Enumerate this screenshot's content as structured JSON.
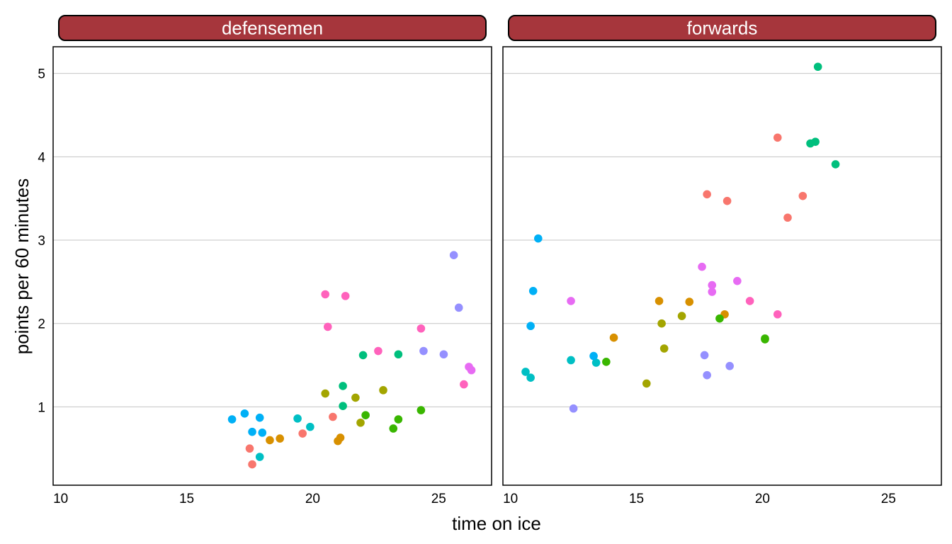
{
  "chart_data": {
    "type": "scatter",
    "xlabel": "time on ice",
    "ylabel": "points per 60 minutes",
    "xlim": [
      9.7,
      27.1
    ],
    "ylim": [
      0.06,
      5.32
    ],
    "xticks": [
      10,
      15,
      20,
      25
    ],
    "yticks": [
      1,
      2,
      3,
      4,
      5
    ],
    "grid": "horizontal major",
    "strip_color": "#a6363c",
    "series_colors": [
      "#f8766d",
      "#d89000",
      "#a3a500",
      "#39b600",
      "#00bf7d",
      "#00bfc4",
      "#00b0f6",
      "#9590ff",
      "#e76bf3",
      "#ff62bc"
    ],
    "panels": [
      {
        "title": "defensemen",
        "points": [
          {
            "x": 17.5,
            "y": 0.5,
            "c": 0
          },
          {
            "x": 17.6,
            "y": 0.31,
            "c": 0
          },
          {
            "x": 19.6,
            "y": 0.68,
            "c": 0
          },
          {
            "x": 20.8,
            "y": 0.88,
            "c": 0
          },
          {
            "x": 18.3,
            "y": 0.6,
            "c": 1
          },
          {
            "x": 18.7,
            "y": 0.62,
            "c": 1
          },
          {
            "x": 21.0,
            "y": 0.59,
            "c": 1
          },
          {
            "x": 21.1,
            "y": 0.63,
            "c": 1
          },
          {
            "x": 20.5,
            "y": 1.16,
            "c": 2
          },
          {
            "x": 21.7,
            "y": 1.11,
            "c": 2
          },
          {
            "x": 21.9,
            "y": 0.81,
            "c": 2
          },
          {
            "x": 22.8,
            "y": 1.2,
            "c": 2
          },
          {
            "x": 22.1,
            "y": 0.9,
            "c": 3
          },
          {
            "x": 23.2,
            "y": 0.74,
            "c": 3
          },
          {
            "x": 23.4,
            "y": 0.85,
            "c": 3
          },
          {
            "x": 24.3,
            "y": 0.96,
            "c": 3
          },
          {
            "x": 21.2,
            "y": 1.25,
            "c": 4
          },
          {
            "x": 21.2,
            "y": 1.01,
            "c": 4
          },
          {
            "x": 22.0,
            "y": 1.62,
            "c": 4
          },
          {
            "x": 23.4,
            "y": 1.63,
            "c": 4
          },
          {
            "x": 17.9,
            "y": 0.4,
            "c": 5
          },
          {
            "x": 19.4,
            "y": 0.86,
            "c": 5
          },
          {
            "x": 19.9,
            "y": 0.76,
            "c": 5
          },
          {
            "x": 16.8,
            "y": 0.85,
            "c": 6
          },
          {
            "x": 17.3,
            "y": 0.92,
            "c": 6
          },
          {
            "x": 17.6,
            "y": 0.7,
            "c": 6
          },
          {
            "x": 17.9,
            "y": 0.87,
            "c": 6
          },
          {
            "x": 18.0,
            "y": 0.69,
            "c": 6
          },
          {
            "x": 24.4,
            "y": 1.67,
            "c": 7
          },
          {
            "x": 25.2,
            "y": 1.63,
            "c": 7
          },
          {
            "x": 25.6,
            "y": 2.82,
            "c": 7
          },
          {
            "x": 25.8,
            "y": 2.19,
            "c": 7
          },
          {
            "x": 26.2,
            "y": 1.48,
            "c": 8
          },
          {
            "x": 26.3,
            "y": 1.44,
            "c": 8
          },
          {
            "x": 20.5,
            "y": 2.35,
            "c": 9
          },
          {
            "x": 20.6,
            "y": 1.96,
            "c": 9
          },
          {
            "x": 21.3,
            "y": 2.33,
            "c": 9
          },
          {
            "x": 22.6,
            "y": 1.67,
            "c": 9
          },
          {
            "x": 24.3,
            "y": 1.94,
            "c": 9
          },
          {
            "x": 26.0,
            "y": 1.27,
            "c": 9
          }
        ]
      },
      {
        "title": "forwards",
        "points": [
          {
            "x": 17.8,
            "y": 3.55,
            "c": 0
          },
          {
            "x": 18.6,
            "y": 3.47,
            "c": 0
          },
          {
            "x": 20.6,
            "y": 4.23,
            "c": 0
          },
          {
            "x": 21.0,
            "y": 3.27,
            "c": 0
          },
          {
            "x": 21.6,
            "y": 3.53,
            "c": 0
          },
          {
            "x": 14.1,
            "y": 1.83,
            "c": 1
          },
          {
            "x": 15.9,
            "y": 2.27,
            "c": 1
          },
          {
            "x": 17.1,
            "y": 2.26,
            "c": 1
          },
          {
            "x": 18.5,
            "y": 2.11,
            "c": 1
          },
          {
            "x": 15.4,
            "y": 1.28,
            "c": 2
          },
          {
            "x": 16.0,
            "y": 2.0,
            "c": 2
          },
          {
            "x": 16.1,
            "y": 1.7,
            "c": 2
          },
          {
            "x": 16.8,
            "y": 2.09,
            "c": 2
          },
          {
            "x": 13.8,
            "y": 1.54,
            "c": 3
          },
          {
            "x": 18.3,
            "y": 2.06,
            "c": 3
          },
          {
            "x": 20.1,
            "y": 1.82,
            "c": 3
          },
          {
            "x": 20.1,
            "y": 1.81,
            "c": 3
          },
          {
            "x": 21.9,
            "y": 4.16,
            "c": 4
          },
          {
            "x": 22.1,
            "y": 4.18,
            "c": 4
          },
          {
            "x": 22.2,
            "y": 5.08,
            "c": 4
          },
          {
            "x": 22.9,
            "y": 3.91,
            "c": 4
          },
          {
            "x": 10.6,
            "y": 1.42,
            "c": 5
          },
          {
            "x": 10.8,
            "y": 1.35,
            "c": 5
          },
          {
            "x": 12.4,
            "y": 1.56,
            "c": 5
          },
          {
            "x": 13.4,
            "y": 1.53,
            "c": 5
          },
          {
            "x": 10.8,
            "y": 1.97,
            "c": 6
          },
          {
            "x": 10.9,
            "y": 2.39,
            "c": 6
          },
          {
            "x": 11.1,
            "y": 3.02,
            "c": 6
          },
          {
            "x": 13.3,
            "y": 1.61,
            "c": 6
          },
          {
            "x": 12.5,
            "y": 0.98,
            "c": 7
          },
          {
            "x": 17.7,
            "y": 1.62,
            "c": 7
          },
          {
            "x": 17.8,
            "y": 1.38,
            "c": 7
          },
          {
            "x": 18.7,
            "y": 1.49,
            "c": 7
          },
          {
            "x": 12.4,
            "y": 2.27,
            "c": 8
          },
          {
            "x": 17.6,
            "y": 2.68,
            "c": 8
          },
          {
            "x": 18.0,
            "y": 2.46,
            "c": 8
          },
          {
            "x": 18.0,
            "y": 2.38,
            "c": 8
          },
          {
            "x": 19.0,
            "y": 2.51,
            "c": 8
          },
          {
            "x": 19.5,
            "y": 2.27,
            "c": 9
          },
          {
            "x": 20.6,
            "y": 2.11,
            "c": 9
          }
        ]
      }
    ]
  }
}
